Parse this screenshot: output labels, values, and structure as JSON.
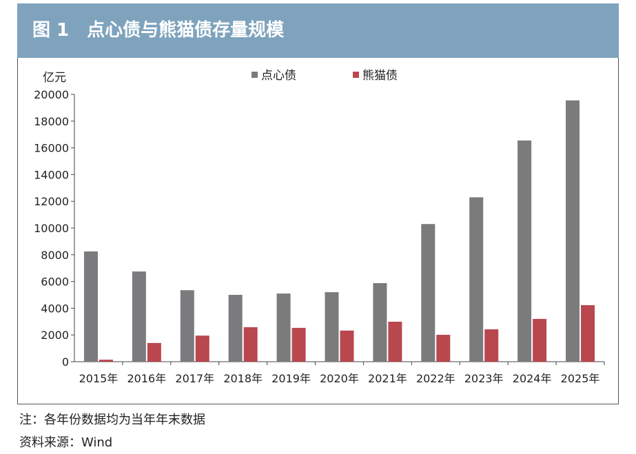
{
  "title": "图 1　点心债与熊猫债存量规模",
  "chart_data": {
    "type": "bar",
    "ylabel": "亿元",
    "ylim": [
      0,
      20000
    ],
    "yticks": [
      0,
      2000,
      4000,
      6000,
      8000,
      10000,
      12000,
      14000,
      16000,
      18000,
      20000
    ],
    "categories": [
      "2015年",
      "2016年",
      "2017年",
      "2018年",
      "2019年",
      "2020年",
      "2021年",
      "2022年",
      "2023年",
      "2024年",
      "2025年"
    ],
    "series": [
      {
        "name": "点心债",
        "color": "#7b7a7d",
        "values": [
          8250,
          6750,
          5350,
          5000,
          5100,
          5200,
          5880,
          10300,
          12300,
          16550,
          19550
        ]
      },
      {
        "name": "熊猫债",
        "color": "#b9474e",
        "values": [
          150,
          1400,
          1950,
          2580,
          2530,
          2330,
          2990,
          2010,
          2420,
          3200,
          4230
        ]
      }
    ],
    "legend": "top-center",
    "grid": false
  },
  "notes": {
    "note": "注：各年份数据均为当年年末数据",
    "source": "资料来源：Wind"
  }
}
